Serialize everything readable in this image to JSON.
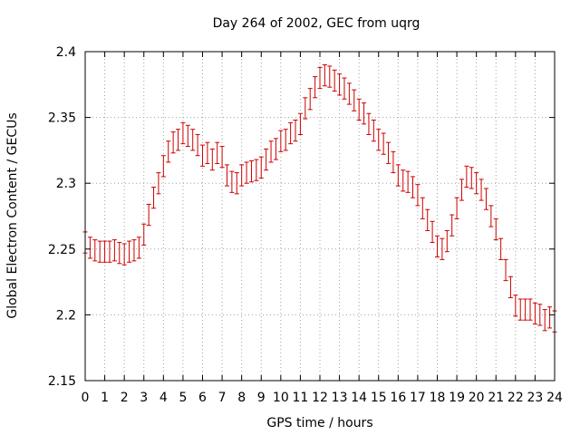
{
  "chart_data": {
    "type": "scatter",
    "title": "Day 264 of 2002, GEC from uqrg",
    "xlabel": "GPS time / hours",
    "ylabel": "Global Electron Content / GECUs",
    "xlim": [
      0,
      24
    ],
    "ylim": [
      2.15,
      2.4
    ],
    "xticks": [
      "0",
      "1",
      "2",
      "3",
      "4",
      "5",
      "6",
      "7",
      "8",
      "9",
      "10",
      "11",
      "12",
      "13",
      "14",
      "15",
      "16",
      "17",
      "18",
      "19",
      "20",
      "21",
      "22",
      "23",
      "24"
    ],
    "yticks": [
      "2.15",
      "2.2",
      "2.25",
      "2.3",
      "2.35",
      "2.4"
    ],
    "grid": true,
    "error_bar": 0.008,
    "series_color": "#cc0000",
    "x": [
      0,
      0.25,
      0.5,
      0.75,
      1,
      1.25,
      1.5,
      1.75,
      2,
      2.25,
      2.5,
      2.75,
      3,
      3.25,
      3.5,
      3.75,
      4,
      4.25,
      4.5,
      4.75,
      5,
      5.25,
      5.5,
      5.75,
      6,
      6.25,
      6.5,
      6.75,
      7,
      7.25,
      7.5,
      7.75,
      8,
      8.25,
      8.5,
      8.75,
      9,
      9.25,
      9.5,
      9.75,
      10,
      10.25,
      10.5,
      10.75,
      11,
      11.25,
      11.5,
      11.75,
      12,
      12.25,
      12.5,
      12.75,
      13,
      13.25,
      13.5,
      13.75,
      14,
      14.25,
      14.5,
      14.75,
      15,
      15.25,
      15.5,
      15.75,
      16,
      16.25,
      16.5,
      16.75,
      17,
      17.25,
      17.5,
      17.75,
      18,
      18.25,
      18.5,
      18.75,
      19,
      19.25,
      19.5,
      19.75,
      20,
      20.25,
      20.5,
      20.75,
      21,
      21.25,
      21.5,
      21.75,
      22,
      22.25,
      22.5,
      22.75,
      23,
      23.25,
      23.5,
      23.75,
      24
    ],
    "y": [
      2.255,
      2.251,
      2.249,
      2.248,
      2.248,
      2.248,
      2.249,
      2.247,
      2.246,
      2.248,
      2.249,
      2.251,
      2.261,
      2.276,
      2.289,
      2.3,
      2.313,
      2.324,
      2.331,
      2.333,
      2.338,
      2.336,
      2.333,
      2.329,
      2.321,
      2.323,
      2.318,
      2.323,
      2.32,
      2.306,
      2.301,
      2.3,
      2.306,
      2.308,
      2.309,
      2.31,
      2.312,
      2.318,
      2.324,
      2.326,
      2.332,
      2.333,
      2.338,
      2.34,
      2.345,
      2.357,
      2.364,
      2.373,
      2.38,
      2.382,
      2.381,
      2.378,
      2.375,
      2.372,
      2.368,
      2.363,
      2.356,
      2.353,
      2.345,
      2.34,
      2.333,
      2.33,
      2.323,
      2.316,
      2.306,
      2.302,
      2.301,
      2.297,
      2.291,
      2.281,
      2.272,
      2.263,
      2.252,
      2.25,
      2.256,
      2.268,
      2.281,
      2.295,
      2.305,
      2.304,
      2.3,
      2.295,
      2.288,
      2.275,
      2.265,
      2.25,
      2.234,
      2.221,
      2.207,
      2.204,
      2.204,
      2.204,
      2.201,
      2.2,
      2.196,
      2.198,
      2.195
    ]
  }
}
